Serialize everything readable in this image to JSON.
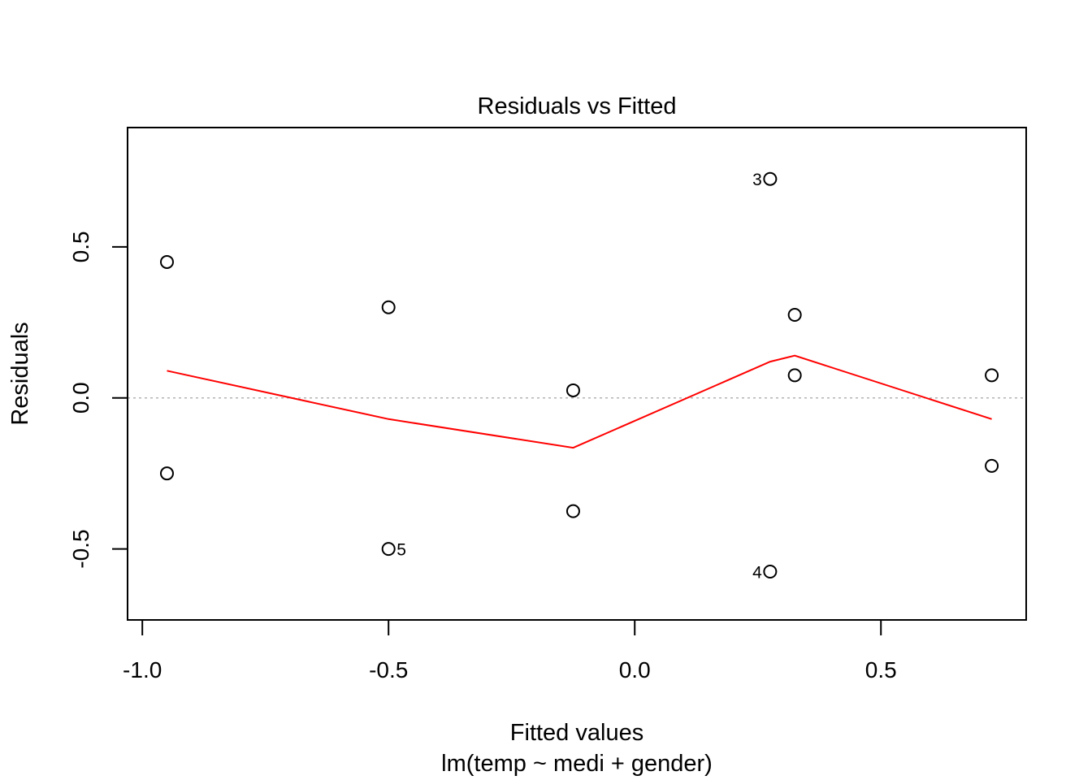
{
  "chart_data": {
    "type": "scatter",
    "title": "Residuals vs Fitted",
    "xlabel": "Fitted values",
    "subtitle": "lm(temp ~ medi + gender)",
    "ylabel": "Residuals",
    "xlim": [
      -1.03,
      0.795
    ],
    "ylim": [
      -0.735,
      0.895
    ],
    "x_ticks": [
      -1.0,
      -0.5,
      0.0,
      0.5
    ],
    "x_tick_labels": [
      "-1.0",
      "-0.5",
      "0.0",
      "0.5"
    ],
    "y_ticks": [
      -0.5,
      0.0,
      0.5
    ],
    "y_tick_labels": [
      "-0.5",
      "0.0",
      "0.5"
    ],
    "reference_line": {
      "y": 0.0,
      "color": "#b3b3b3",
      "style": "dotted"
    },
    "points": [
      {
        "x": -0.95,
        "y": 0.45,
        "label": ""
      },
      {
        "x": -0.95,
        "y": -0.25,
        "label": ""
      },
      {
        "x": -0.5,
        "y": 0.3,
        "label": ""
      },
      {
        "x": -0.5,
        "y": -0.5,
        "label": "5",
        "label_side": "right"
      },
      {
        "x": -0.125,
        "y": 0.025,
        "label": ""
      },
      {
        "x": -0.125,
        "y": -0.375,
        "label": ""
      },
      {
        "x": 0.275,
        "y": 0.725,
        "label": "3",
        "label_side": "left"
      },
      {
        "x": 0.275,
        "y": -0.575,
        "label": "4",
        "label_side": "left"
      },
      {
        "x": 0.325,
        "y": 0.275,
        "label": ""
      },
      {
        "x": 0.325,
        "y": 0.075,
        "label": ""
      },
      {
        "x": 0.725,
        "y": 0.075,
        "label": ""
      },
      {
        "x": 0.725,
        "y": -0.225,
        "label": ""
      }
    ],
    "smooth_line": {
      "color": "#ff0000",
      "points": [
        {
          "x": -0.95,
          "y": 0.09
        },
        {
          "x": -0.5,
          "y": -0.07
        },
        {
          "x": -0.125,
          "y": -0.165
        },
        {
          "x": 0.275,
          "y": 0.12
        },
        {
          "x": 0.325,
          "y": 0.14
        },
        {
          "x": 0.725,
          "y": -0.07
        }
      ]
    },
    "grid": false,
    "legend": "none"
  }
}
